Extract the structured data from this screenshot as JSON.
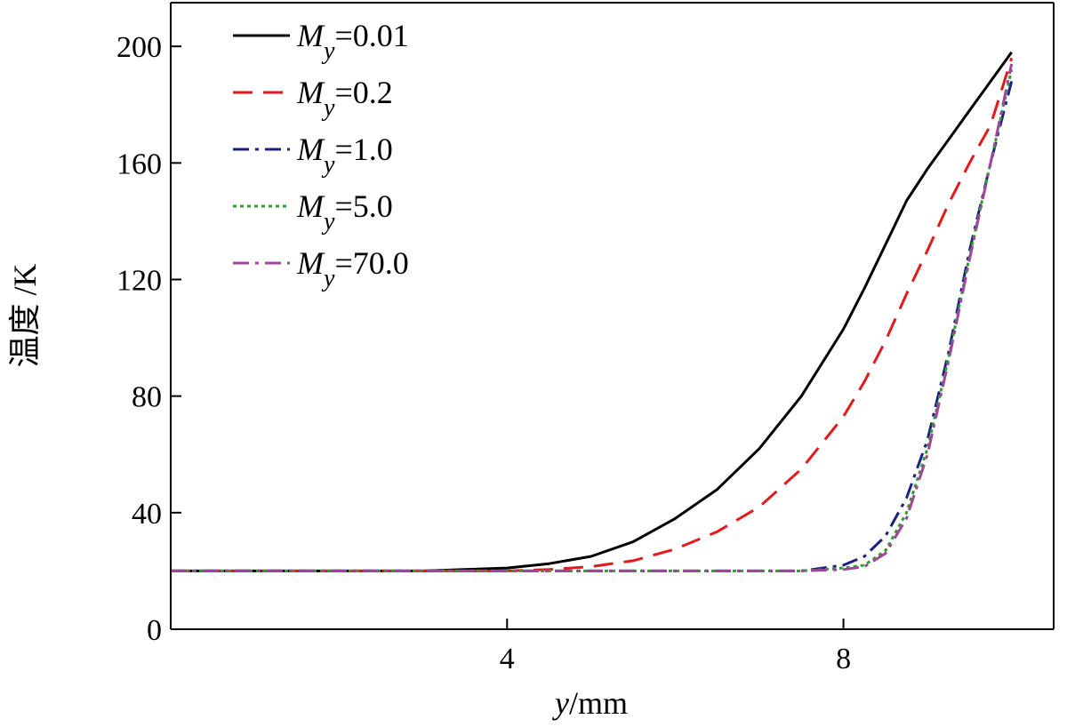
{
  "chart_data": {
    "type": "line",
    "title": "",
    "xlabel": {
      "var": "y",
      "unit": "/mm"
    },
    "ylabel": "温度 /K",
    "xlim": [
      0,
      10.5
    ],
    "ylim": [
      0,
      215
    ],
    "xticks": [
      4,
      8
    ],
    "yticks": [
      0,
      40,
      80,
      120,
      160,
      200
    ],
    "grid": false,
    "legend_position": "top-left",
    "x": [
      0,
      1,
      2,
      3,
      4,
      4.5,
      5,
      5.5,
      6,
      6.5,
      7,
      7.5,
      8,
      8.25,
      8.5,
      8.75,
      9,
      9.25,
      9.5,
      9.75,
      10
    ],
    "series": [
      {
        "name": "M_y=0.01",
        "label": {
          "sym": "M",
          "sub": "y",
          "val": "=0.01"
        },
        "color": "#000000",
        "dash": "solid",
        "values": [
          20,
          20,
          20,
          20,
          21,
          22.5,
          25,
          30,
          38,
          48,
          62,
          80,
          103,
          117,
          132,
          147,
          158,
          168,
          178,
          188,
          198
        ]
      },
      {
        "name": "M_y=0.2",
        "label": {
          "sym": "M",
          "sub": "y",
          "val": "=0.2"
        },
        "color": "#e31a1c",
        "dash": "dash",
        "values": [
          20,
          20,
          20,
          20,
          20,
          20.5,
          21.5,
          23.5,
          27.5,
          33.5,
          42,
          55,
          73,
          85,
          99,
          115,
          130,
          146,
          160,
          173,
          196
        ]
      },
      {
        "name": "M_y=1.0",
        "label": {
          "sym": "M",
          "sub": "y",
          "val": "=1.0"
        },
        "color": "#1a237e",
        "dash": "dashdot",
        "values": [
          20,
          20,
          20,
          20,
          20,
          20,
          20,
          20,
          20,
          20,
          20,
          20,
          22,
          25,
          32,
          45,
          65,
          95,
          130,
          160,
          188
        ]
      },
      {
        "name": "M_y=5.0",
        "label": {
          "sym": "M",
          "sub": "y",
          "val": "=5.0"
        },
        "color": "#2ca02c",
        "dash": "dot",
        "values": [
          20,
          20,
          20,
          20,
          20,
          20,
          20,
          20,
          20,
          20,
          20,
          20,
          21,
          22,
          27,
          40,
          62,
          93,
          128,
          160,
          192
        ]
      },
      {
        "name": "M_y=70.0",
        "label": {
          "sym": "M",
          "sub": "y",
          "val": "=70.0"
        },
        "color": "#a0449c",
        "dash": "dashdot",
        "values": [
          20,
          20,
          20,
          20,
          20,
          20,
          20,
          20,
          20,
          20,
          20,
          20,
          20.5,
          21.5,
          26,
          38,
          60,
          92,
          127,
          160,
          194
        ]
      }
    ]
  }
}
